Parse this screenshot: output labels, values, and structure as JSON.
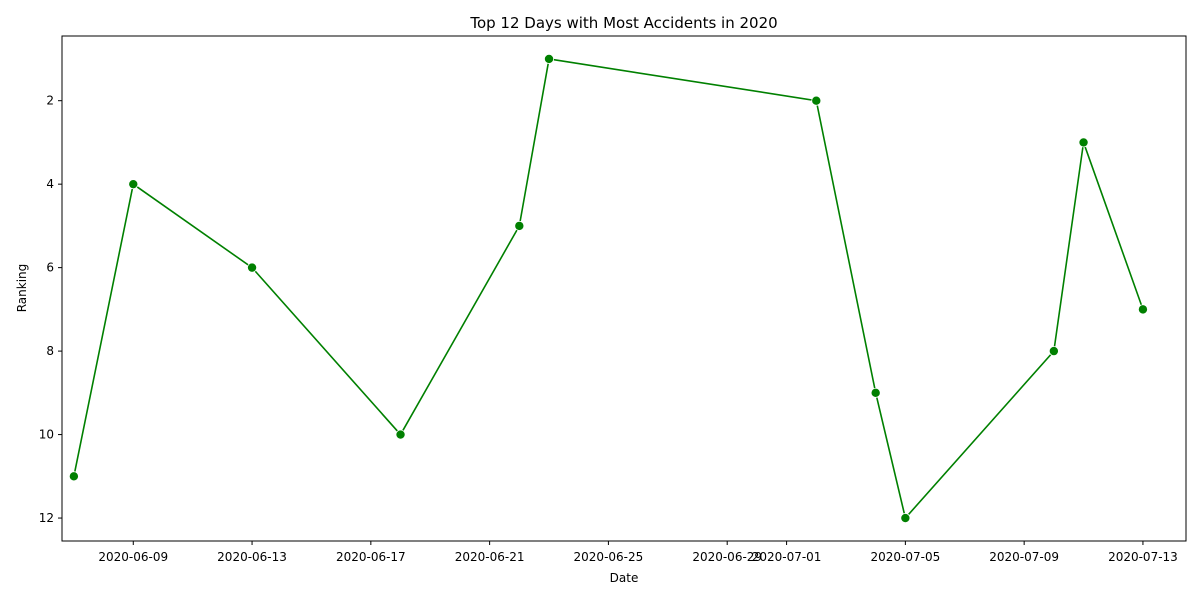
{
  "chart_data": {
    "type": "line",
    "title": "Top 12 Days with Most Accidents in 2020",
    "xlabel": "Date",
    "ylabel": "Ranking",
    "y_inverted": true,
    "ylim": [
      12.55,
      0.45
    ],
    "xlim": [
      "2020-06-06",
      "2020-07-14"
    ],
    "grid": false,
    "line_color": "#008000",
    "marker_color": "#008000",
    "x_ticks": [
      "2020-06-09",
      "2020-06-13",
      "2020-06-17",
      "2020-06-21",
      "2020-06-25",
      "2020-06-29",
      "2020-07-01",
      "2020-07-05",
      "2020-07-09",
      "2020-07-13"
    ],
    "y_ticks": [
      2,
      4,
      6,
      8,
      10,
      12
    ],
    "series": [
      {
        "x": [
          "2020-06-07",
          "2020-06-09",
          "2020-06-13",
          "2020-06-18",
          "2020-06-22",
          "2020-06-23",
          "2020-07-02",
          "2020-07-04",
          "2020-07-05",
          "2020-07-10",
          "2020-07-11",
          "2020-07-13"
        ],
        "values": [
          11,
          4,
          6,
          10,
          5,
          1,
          2,
          9,
          12,
          8,
          3,
          7
        ]
      }
    ]
  }
}
